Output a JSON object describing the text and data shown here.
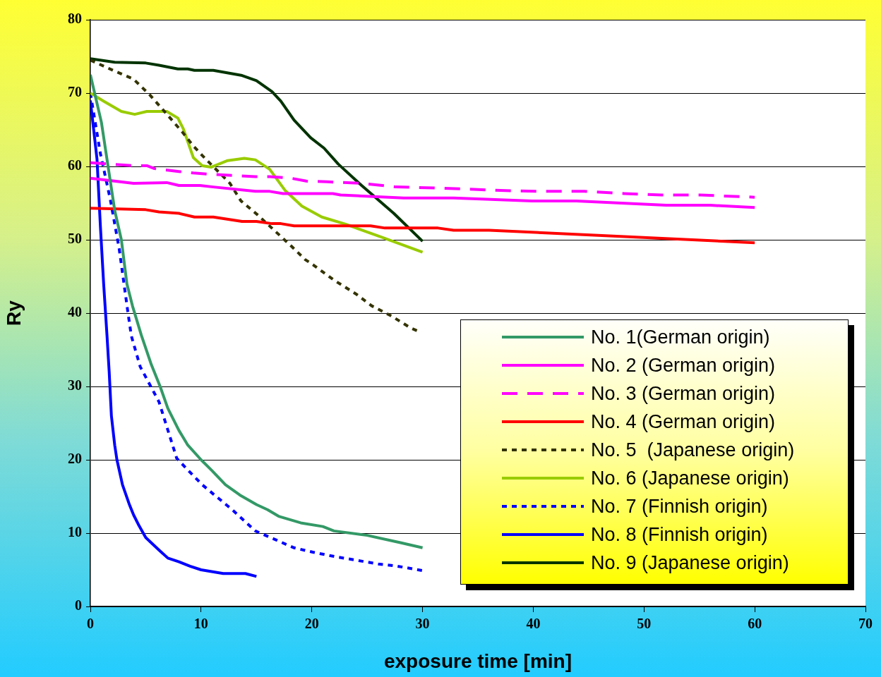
{
  "chart_data": {
    "type": "line",
    "xlabel": "exposure time [min]",
    "ylabel": "Ry",
    "xlim": [
      0,
      70
    ],
    "xticks": [
      0,
      10,
      20,
      30,
      40,
      50,
      60,
      70
    ],
    "ylim": [
      0,
      80
    ],
    "yticks": [
      0,
      10,
      20,
      30,
      40,
      50,
      60,
      70,
      80
    ],
    "grid": "y",
    "legend": "bottom right",
    "series": [
      {
        "name": "No. 1(German origin)",
        "color": "#339966",
        "line_style": "solid",
        "x": [
          0,
          1,
          1.6,
          2.2,
          2.8,
          3.3,
          3.8,
          4.6,
          5.5,
          6.3,
          7,
          8,
          8.8,
          10,
          11,
          12.2,
          13.5,
          15,
          16,
          17,
          19,
          21,
          22,
          25,
          28,
          30
        ],
        "values": [
          72.5,
          66,
          60,
          54,
          50,
          44,
          41,
          37,
          33,
          30,
          27,
          24,
          22,
          20,
          18.5,
          16.6,
          15.2,
          13.9,
          13.2,
          12.3,
          11.4,
          10.9,
          10.3,
          9.7,
          8.7,
          8
        ]
      },
      {
        "name": "No. 2 (German origin)",
        "color": "#ff00ff",
        "line_style": "solid",
        "x": [
          0,
          3.9,
          6.9,
          8,
          9.9,
          11.1,
          14.9,
          16.2,
          17.4,
          21.9,
          22.6,
          28.3,
          32.8,
          39.9,
          43.9,
          52,
          56,
          60
        ],
        "values": [
          58.4,
          57.7,
          57.8,
          57.4,
          57.4,
          57.2,
          56.6,
          56.6,
          56.3,
          56.3,
          56.1,
          55.7,
          55.7,
          55.3,
          55.3,
          54.7,
          54.7,
          54.4
        ]
      },
      {
        "name": "No. 3 (German origin)",
        "color": "#ff00ff",
        "line_style": "dashed",
        "x": [
          0,
          3.9,
          5.1,
          5.8,
          8,
          9.3,
          11.2,
          14.9,
          16.2,
          18.1,
          19.5,
          21.4,
          24.5,
          27.6,
          30.4,
          34.1,
          37.5,
          41,
          44.6,
          48.2,
          51.6,
          55.1,
          60
        ],
        "values": [
          60.5,
          60.1,
          60.1,
          59.7,
          59.3,
          59.1,
          58.9,
          58.6,
          58.6,
          58.4,
          58,
          57.9,
          57.7,
          57.2,
          57.1,
          56.9,
          56.7,
          56.6,
          56.6,
          56.3,
          56.1,
          56.1,
          55.8
        ]
      },
      {
        "name": "No. 4 (German origin)",
        "color": "#ff0000",
        "line_style": "solid",
        "x": [
          0,
          5,
          6.2,
          8,
          9.4,
          11.1,
          13.7,
          15,
          16.4,
          17.2,
          18.4,
          25.3,
          26.6,
          31.4,
          32.8,
          36,
          60
        ],
        "values": [
          54.3,
          54.1,
          53.8,
          53.6,
          53.1,
          53.1,
          52.5,
          52.5,
          52.2,
          52.2,
          51.9,
          51.9,
          51.6,
          51.6,
          51.3,
          51.3,
          49.6
        ]
      },
      {
        "name": "No. 5  (Japanese origin)",
        "color": "#333300",
        "line_style": "dotted",
        "x": [
          0,
          2.2,
          3.9,
          5.4,
          6.4,
          8.3,
          9.3,
          10.1,
          12.6,
          13.6,
          15.1,
          16.6,
          18.1,
          19.4,
          20.1,
          22,
          24,
          25.4,
          27.2,
          28.9,
          29.5
        ],
        "values": [
          74.5,
          73,
          71.9,
          69.7,
          68,
          64.7,
          62.8,
          61.5,
          57.7,
          55.3,
          53.4,
          51.3,
          49.2,
          47.3,
          46.6,
          44.5,
          42.6,
          41,
          39.6,
          38,
          37.6
        ]
      },
      {
        "name": "No. 6 (Japanese origin)",
        "color": "#99cc00",
        "line_style": "solid",
        "x": [
          0,
          1.2,
          2.8,
          4,
          5.1,
          6.9,
          7.9,
          8.4,
          9.3,
          10.1,
          10.9,
          12.4,
          13.9,
          14.9,
          16.2,
          17.6,
          19.1,
          20.9,
          23.1,
          26.4,
          30
        ],
        "values": [
          70,
          68.9,
          67.5,
          67.1,
          67.5,
          67.5,
          66.6,
          65.1,
          61.2,
          60.1,
          59.9,
          60.8,
          61.1,
          60.9,
          59.6,
          56.7,
          54.6,
          53.1,
          52.1,
          50.3,
          48.3
        ]
      },
      {
        "name": "No. 7 (Finnish origin)",
        "color": "#0000ff",
        "line_style": "dotted",
        "x": [
          0,
          0.9,
          1.8,
          2.6,
          3.4,
          3.7,
          4.5,
          6.2,
          6.8,
          7.8,
          9,
          10.1,
          12.8,
          14.9,
          18.4,
          20.1,
          22.1,
          26,
          27.7,
          30
        ],
        "values": [
          70,
          61.8,
          55.5,
          48.8,
          40,
          36.9,
          32.7,
          27.9,
          25,
          20.2,
          18.3,
          16.6,
          13.2,
          10.3,
          8,
          7.4,
          6.8,
          5.8,
          5.5,
          4.9
        ]
      },
      {
        "name": "No. 8 (Finnish origin)",
        "color": "#0000ff",
        "line_style": "solid",
        "x": [
          0,
          0.3,
          0.6,
          0.9,
          1.2,
          1.5,
          1.7,
          1.9,
          2.2,
          2.4,
          2.9,
          3.5,
          3.9,
          4.4,
          5,
          6.2,
          7,
          8,
          9,
          10,
          12,
          14,
          15
        ],
        "values": [
          69,
          65,
          61,
          52,
          44,
          37,
          32,
          26,
          22,
          20,
          16.6,
          14,
          12.5,
          11,
          9.4,
          7.7,
          6.6,
          6.1,
          5.5,
          5,
          4.5,
          4.5,
          4.1
        ]
      },
      {
        "name": "No. 9 (Japanese origin)",
        "color": "#003300",
        "line_style": "solid",
        "x": [
          0,
          2.2,
          5,
          6.2,
          7.9,
          8.8,
          9.4,
          11.1,
          13.7,
          15,
          16.4,
          17.2,
          18.4,
          19.9,
          21.1,
          22.4,
          24.5,
          27.4,
          30
        ],
        "values": [
          74.7,
          74.2,
          74.1,
          73.8,
          73.3,
          73.3,
          73.1,
          73.1,
          72.4,
          71.7,
          70.2,
          68.9,
          66.3,
          63.9,
          62.5,
          60.3,
          57.4,
          53.6,
          49.8
        ]
      }
    ]
  }
}
